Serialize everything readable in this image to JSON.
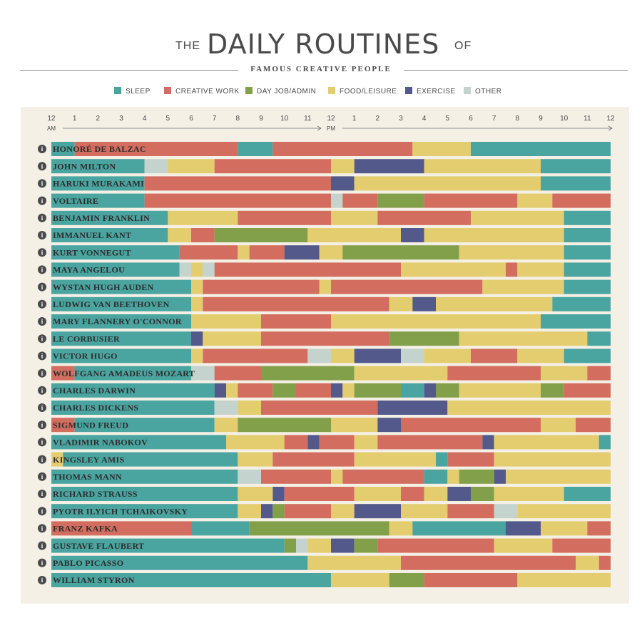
{
  "header": {
    "the": "THE",
    "title": "DAILY ROUTINES",
    "of": "OF",
    "subtitle": "FAMOUS CREATIVE PEOPLE"
  },
  "legend": [
    {
      "key": "S",
      "label": "SLEEP",
      "color": "#4aa4a0"
    },
    {
      "key": "C",
      "label": "CREATIVE WORK",
      "color": "#d36d5f"
    },
    {
      "key": "D",
      "label": "DAY JOB/ADMIN",
      "color": "#82a04a"
    },
    {
      "key": "F",
      "label": "FOOD/LEISURE",
      "color": "#e3cd6f"
    },
    {
      "key": "E",
      "label": "EXERCISE",
      "color": "#535a8b"
    },
    {
      "key": "O",
      "label": "OTHER",
      "color": "#c4d3cd"
    }
  ],
  "chart_data": {
    "type": "bar",
    "orientation": "horizontal-timeline",
    "x_unit": "hour of day (0 = 12 AM, 24 = 12 AM next day)",
    "xlim": [
      0,
      24
    ],
    "x_ticks": [
      "12",
      "1",
      "2",
      "3",
      "4",
      "5",
      "6",
      "7",
      "8",
      "9",
      "10",
      "11",
      "12",
      "1",
      "2",
      "3",
      "4",
      "5",
      "6",
      "7",
      "8",
      "9",
      "10",
      "11",
      "12"
    ],
    "x_tick_sublabels": {
      "am": "AM",
      "pm": "PM"
    },
    "rows": [
      {
        "name": "HONORÉ DE BALZAC",
        "segments": [
          [
            "S",
            0,
            1
          ],
          [
            "C",
            1,
            8
          ],
          [
            "S",
            8,
            9.5
          ],
          [
            "C",
            9.5,
            15.5
          ],
          [
            "F",
            15.5,
            18
          ],
          [
            "S",
            18,
            24
          ]
        ]
      },
      {
        "name": "JOHN MILTON",
        "segments": [
          [
            "S",
            0,
            4
          ],
          [
            "O",
            4,
            5
          ],
          [
            "F",
            5,
            7
          ],
          [
            "C",
            7,
            12
          ],
          [
            "F",
            12,
            13
          ],
          [
            "E",
            13,
            16
          ],
          [
            "F",
            16,
            21
          ],
          [
            "S",
            21,
            24
          ]
        ]
      },
      {
        "name": "HARUKI MURAKAMI",
        "segments": [
          [
            "S",
            0,
            4
          ],
          [
            "C",
            4,
            12
          ],
          [
            "E",
            12,
            13
          ],
          [
            "F",
            13,
            21
          ],
          [
            "S",
            21,
            24
          ]
        ]
      },
      {
        "name": "VOLTAIRE",
        "segments": [
          [
            "S",
            0,
            4
          ],
          [
            "C",
            4,
            12
          ],
          [
            "O",
            12,
            12.5
          ],
          [
            "C",
            12.5,
            14
          ],
          [
            "D",
            14,
            16
          ],
          [
            "C",
            16,
            20
          ],
          [
            "F",
            20,
            21.5
          ],
          [
            "C",
            21.5,
            24
          ]
        ]
      },
      {
        "name": "BENJAMIN FRANKLIN",
        "segments": [
          [
            "S",
            0,
            5
          ],
          [
            "F",
            5,
            8
          ],
          [
            "C",
            8,
            12
          ],
          [
            "F",
            12,
            14
          ],
          [
            "C",
            14,
            18
          ],
          [
            "F",
            18,
            22
          ],
          [
            "S",
            22,
            24
          ]
        ]
      },
      {
        "name": "IMMANUEL KANT",
        "segments": [
          [
            "S",
            0,
            5
          ],
          [
            "F",
            5,
            6
          ],
          [
            "C",
            6,
            7
          ],
          [
            "D",
            7,
            11
          ],
          [
            "F",
            11,
            15
          ],
          [
            "E",
            15,
            16
          ],
          [
            "F",
            16,
            22
          ],
          [
            "S",
            22,
            24
          ]
        ]
      },
      {
        "name": "KURT VONNEGUT",
        "segments": [
          [
            "S",
            0,
            5.5
          ],
          [
            "C",
            5.5,
            8
          ],
          [
            "F",
            8,
            8.5
          ],
          [
            "C",
            8.5,
            10
          ],
          [
            "E",
            10,
            11.5
          ],
          [
            "F",
            11.5,
            12.5
          ],
          [
            "D",
            12.5,
            17.5
          ],
          [
            "F",
            17.5,
            22
          ],
          [
            "S",
            22,
            24
          ]
        ]
      },
      {
        "name": "MAYA ANGELOU",
        "segments": [
          [
            "S",
            0,
            5.5
          ],
          [
            "O",
            5.5,
            6
          ],
          [
            "F",
            6,
            6.5
          ],
          [
            "O",
            6.5,
            7
          ],
          [
            "C",
            7,
            15
          ],
          [
            "F",
            15,
            19.5
          ],
          [
            "C",
            19.5,
            20
          ],
          [
            "F",
            20,
            22
          ],
          [
            "S",
            22,
            24
          ]
        ]
      },
      {
        "name": "WYSTAN HUGH AUDEN",
        "segments": [
          [
            "S",
            0,
            6
          ],
          [
            "F",
            6,
            6.5
          ],
          [
            "C",
            6.5,
            11.5
          ],
          [
            "F",
            11.5,
            12
          ],
          [
            "C",
            12,
            18.5
          ],
          [
            "F",
            18.5,
            22
          ],
          [
            "S",
            22,
            24
          ]
        ]
      },
      {
        "name": "LUDWIG VAN BEETHOVEN",
        "segments": [
          [
            "S",
            0,
            6
          ],
          [
            "F",
            6,
            6.5
          ],
          [
            "C",
            6.5,
            14.5
          ],
          [
            "F",
            14.5,
            15.5
          ],
          [
            "E",
            15.5,
            16.5
          ],
          [
            "F",
            16.5,
            21.5
          ],
          [
            "S",
            21.5,
            24
          ]
        ]
      },
      {
        "name": "MARY FLANNERY O'CONNOR",
        "segments": [
          [
            "S",
            0,
            6
          ],
          [
            "F",
            6,
            9
          ],
          [
            "C",
            9,
            12
          ],
          [
            "F",
            12,
            21
          ],
          [
            "S",
            21,
            24
          ]
        ]
      },
      {
        "name": "LE CORBUSIER",
        "segments": [
          [
            "S",
            0,
            6
          ],
          [
            "E",
            6,
            6.5
          ],
          [
            "F",
            6.5,
            9
          ],
          [
            "C",
            9,
            14.5
          ],
          [
            "D",
            14.5,
            17.5
          ],
          [
            "F",
            17.5,
            23
          ],
          [
            "S",
            23,
            24
          ]
        ]
      },
      {
        "name": "VICTOR HUGO",
        "segments": [
          [
            "S",
            0,
            6
          ],
          [
            "F",
            6,
            6.5
          ],
          [
            "C",
            6.5,
            11
          ],
          [
            "O",
            11,
            12
          ],
          [
            "F",
            12,
            13
          ],
          [
            "E",
            13,
            15
          ],
          [
            "O",
            15,
            16
          ],
          [
            "F",
            16,
            18
          ],
          [
            "C",
            18,
            20
          ],
          [
            "F",
            20,
            22
          ],
          [
            "S",
            22,
            24
          ]
        ]
      },
      {
        "name": "WOLFGANG AMADEUS MOZART",
        "segments": [
          [
            "C",
            0,
            1
          ],
          [
            "S",
            0.999,
            6
          ],
          [
            "O",
            6,
            7
          ],
          [
            "C",
            7,
            9
          ],
          [
            "D",
            9,
            13
          ],
          [
            "F",
            13,
            17
          ],
          [
            "C",
            17,
            21
          ],
          [
            "F",
            21,
            23
          ],
          [
            "C",
            23,
            24
          ]
        ]
      },
      {
        "name": "CHARLES DARWIN",
        "segments": [
          [
            "S",
            0,
            7
          ],
          [
            "E",
            7,
            7.5
          ],
          [
            "F",
            7.5,
            8
          ],
          [
            "C",
            8,
            9.5
          ],
          [
            "D",
            9.5,
            10.5
          ],
          [
            "C",
            10.5,
            12
          ],
          [
            "E",
            12,
            12.5
          ],
          [
            "F",
            12.5,
            13
          ],
          [
            "D",
            13,
            15
          ],
          [
            "S",
            15,
            16
          ],
          [
            "E",
            16,
            16.5
          ],
          [
            "D",
            16.5,
            17.5
          ],
          [
            "F",
            17.5,
            21
          ],
          [
            "D",
            21,
            22
          ],
          [
            "C",
            22,
            24
          ]
        ]
      },
      {
        "name": "CHARLES DICKENS",
        "segments": [
          [
            "S",
            0,
            7
          ],
          [
            "O",
            7,
            8
          ],
          [
            "F",
            8,
            9
          ],
          [
            "C",
            9,
            14
          ],
          [
            "E",
            14,
            17
          ],
          [
            "F",
            17,
            24
          ]
        ]
      },
      {
        "name": "SIGMUND FREUD",
        "segments": [
          [
            "C",
            0,
            1
          ],
          [
            "S",
            1,
            7
          ],
          [
            "F",
            7,
            8
          ],
          [
            "D",
            8,
            12
          ],
          [
            "F",
            12,
            14
          ],
          [
            "E",
            14,
            15
          ],
          [
            "C",
            15,
            21
          ],
          [
            "F",
            21,
            22.5
          ],
          [
            "C",
            22.5,
            24
          ]
        ]
      },
      {
        "name": "VLADIMIR NABOKOV",
        "segments": [
          [
            "S",
            0,
            7.5
          ],
          [
            "F",
            7.5,
            10
          ],
          [
            "C",
            10,
            11
          ],
          [
            "E",
            11,
            11.5
          ],
          [
            "C",
            11.5,
            13
          ],
          [
            "F",
            13,
            14
          ],
          [
            "C",
            14,
            18.5
          ],
          [
            "E",
            18.5,
            19
          ],
          [
            "F",
            19,
            23.5
          ],
          [
            "S",
            23.5,
            24
          ]
        ]
      },
      {
        "name": "KINGSLEY AMIS",
        "segments": [
          [
            "F",
            0,
            0.5
          ],
          [
            "S",
            0.5,
            8
          ],
          [
            "F",
            8,
            9.5
          ],
          [
            "C",
            9.5,
            13
          ],
          [
            "F",
            13,
            16.5
          ],
          [
            "S",
            16.5,
            17
          ],
          [
            "C",
            17,
            19
          ],
          [
            "F",
            19,
            24
          ]
        ]
      },
      {
        "name": "THOMAS MANN",
        "segments": [
          [
            "S",
            0,
            8
          ],
          [
            "O",
            8,
            9
          ],
          [
            "C",
            9,
            12
          ],
          [
            "F",
            12,
            12.5
          ],
          [
            "C",
            12.5,
            16
          ],
          [
            "S",
            16,
            17
          ],
          [
            "F",
            17,
            17.5
          ],
          [
            "D",
            17.5,
            19
          ],
          [
            "E",
            19,
            19.5
          ],
          [
            "F",
            19.5,
            24
          ]
        ]
      },
      {
        "name": "RICHARD STRAUSS",
        "segments": [
          [
            "S",
            0,
            8
          ],
          [
            "F",
            8,
            9.5
          ],
          [
            "E",
            9.5,
            10
          ],
          [
            "C",
            10,
            13
          ],
          [
            "F",
            13,
            15
          ],
          [
            "C",
            15,
            16
          ],
          [
            "F",
            16,
            17
          ],
          [
            "E",
            17,
            18
          ],
          [
            "D",
            18,
            19
          ],
          [
            "F",
            19,
            22
          ],
          [
            "S",
            22,
            24
          ]
        ]
      },
      {
        "name": "PYOTR ILYICH TCHAIKOVSKY",
        "segments": [
          [
            "S",
            0,
            8
          ],
          [
            "F",
            8,
            9
          ],
          [
            "E",
            9,
            9.5
          ],
          [
            "D",
            9.5,
            10
          ],
          [
            "C",
            10,
            12
          ],
          [
            "F",
            12,
            13
          ],
          [
            "E",
            13,
            15
          ],
          [
            "F",
            15,
            17
          ],
          [
            "C",
            17,
            19
          ],
          [
            "O",
            19,
            20
          ],
          [
            "F",
            20,
            24
          ]
        ]
      },
      {
        "name": "FRANZ KAFKA",
        "segments": [
          [
            "C",
            0,
            6
          ],
          [
            "S",
            6,
            8.5
          ],
          [
            "D",
            8.5,
            14.5
          ],
          [
            "F",
            14.5,
            15.5
          ],
          [
            "S",
            15.5,
            19.5
          ],
          [
            "E",
            19.5,
            21
          ],
          [
            "F",
            21,
            23
          ],
          [
            "C",
            23,
            24
          ]
        ]
      },
      {
        "name": "GUSTAVE FLAUBERT",
        "segments": [
          [
            "S",
            0,
            10
          ],
          [
            "D",
            10,
            10.5
          ],
          [
            "O",
            10.5,
            11
          ],
          [
            "F",
            11,
            12
          ],
          [
            "E",
            12,
            13
          ],
          [
            "D",
            13,
            14
          ],
          [
            "C",
            14,
            19
          ],
          [
            "F",
            19,
            21.5
          ],
          [
            "C",
            21.5,
            24
          ]
        ]
      },
      {
        "name": "PABLO PICASSO",
        "segments": [
          [
            "S",
            0,
            11
          ],
          [
            "F",
            11,
            15
          ],
          [
            "C",
            15,
            22.5
          ],
          [
            "F",
            22.5,
            23.5
          ],
          [
            "C",
            23.5,
            24
          ]
        ]
      },
      {
        "name": "WILLIAM STYRON",
        "segments": [
          [
            "S",
            0,
            12
          ],
          [
            "F",
            12,
            14.5
          ],
          [
            "D",
            14.5,
            16
          ],
          [
            "C",
            16,
            20
          ],
          [
            "F",
            20,
            24
          ]
        ]
      }
    ]
  }
}
